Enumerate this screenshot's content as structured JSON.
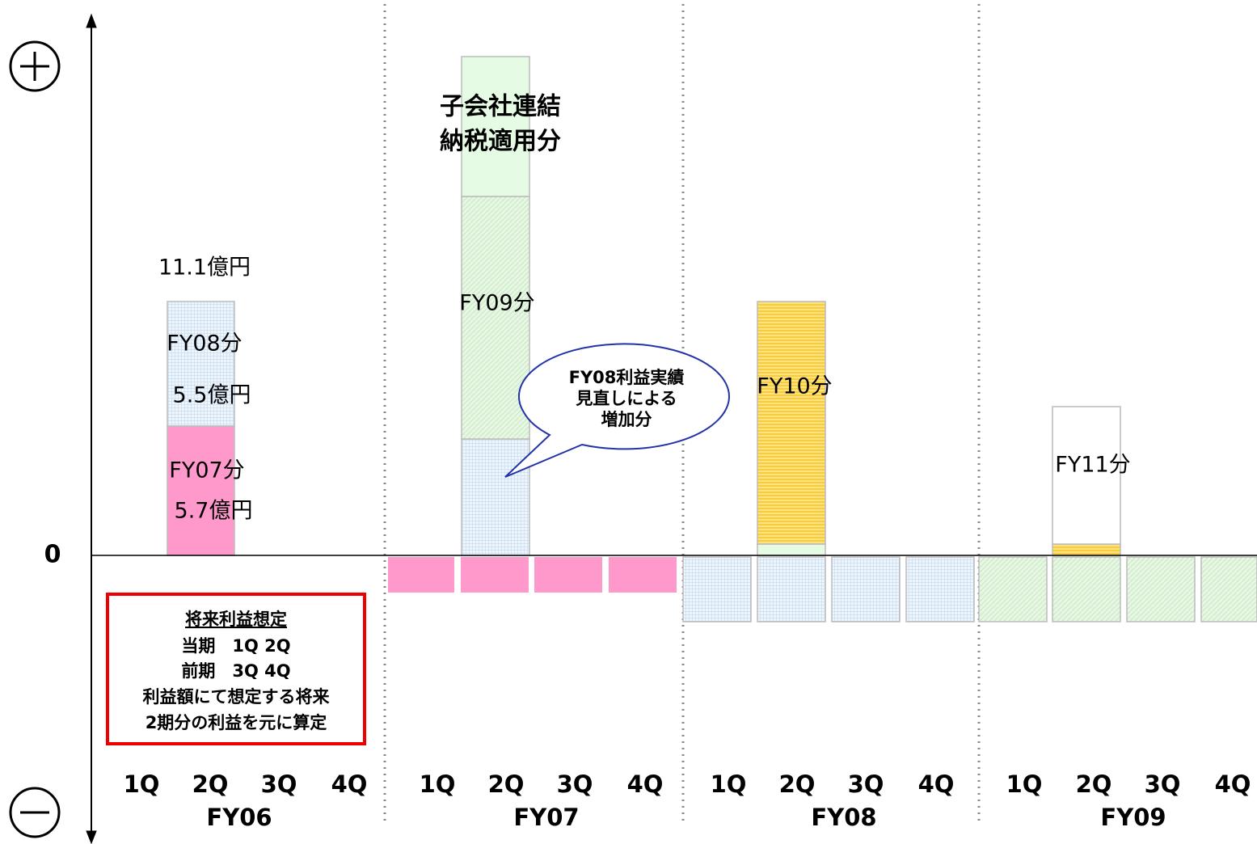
{
  "zero_label": "0",
  "quarters": [
    "1Q",
    "2Q",
    "3Q",
    "4Q",
    "1Q",
    "2Q",
    "3Q",
    "4Q",
    "1Q",
    "2Q",
    "3Q",
    "4Q",
    "1Q",
    "2Q",
    "3Q",
    "4Q"
  ],
  "fiscal_years": [
    "FY06",
    "FY07",
    "FY08",
    "FY09"
  ],
  "annotations": {
    "fy06_total": "11.1億円",
    "fy08_part": "FY08分",
    "fy08_amount": "5.5億円",
    "fy07_part": "FY07分",
    "fy07_amount": "5.7億円",
    "subsidiary_1": "子会社連結",
    "subsidiary_2": "納税適用分",
    "fy09_part": "FY09分",
    "fy10_part": "FY10分",
    "fy11_part": "FY11分"
  },
  "callout": [
    "FY08利益実績",
    "見直しによる",
    "増加分"
  ],
  "note": {
    "title": "将来利益想定",
    "lines": [
      "当期　1Q 2Q",
      "前期　3Q 4Q",
      "利益額にて想定する将来",
      "2期分の利益を元に算定"
    ]
  }
}
